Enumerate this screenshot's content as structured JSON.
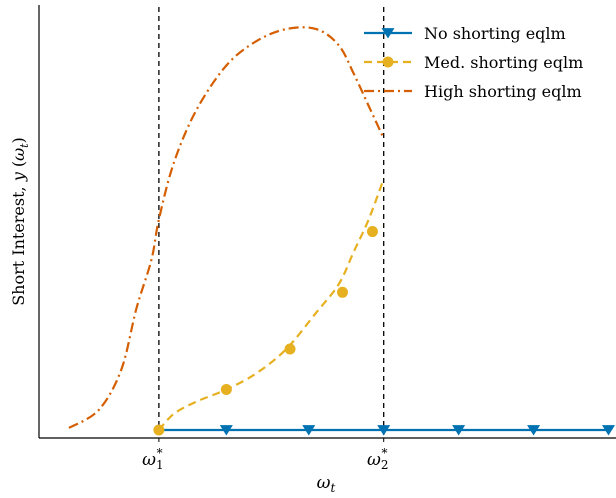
{
  "chart_data": {
    "type": "line",
    "title": "",
    "xlabel": "ω_t",
    "ylabel": "Short Interest, y(ω_t)",
    "x_ticks": [
      {
        "x": 0.31,
        "base": "ω",
        "sub": "1",
        "sup": "*"
      },
      {
        "x": 0.61,
        "base": "ω",
        "sub": "2",
        "sup": "*"
      }
    ],
    "xlim": [
      0.15,
      0.92
    ],
    "ylim": [
      0,
      1.0
    ],
    "vlines": [
      0.31,
      0.61
    ],
    "grid": false,
    "legend": "top-right",
    "series": [
      {
        "name": "No shorting eqlm",
        "color": "#0072B2",
        "style": "solid",
        "marker": "triangle-down",
        "x": [
          0.31,
          0.4,
          0.51,
          0.61,
          0.71,
          0.81,
          0.91
        ],
        "y": [
          0,
          0,
          0,
          0,
          0,
          0,
          0
        ],
        "marker_x": [
          0.4,
          0.51,
          0.61,
          0.71,
          0.81,
          0.91
        ]
      },
      {
        "name": "Med. shorting eqlm",
        "color": "#E6B020",
        "style": "dashed",
        "marker": "circle",
        "x": [
          0.31,
          0.33,
          0.36,
          0.4,
          0.44,
          0.48,
          0.52,
          0.55,
          0.57,
          0.59,
          0.61
        ],
        "y": [
          0.0,
          0.04,
          0.07,
          0.1,
          0.14,
          0.2,
          0.29,
          0.36,
          0.44,
          0.52,
          0.62
        ],
        "marker_x": [
          0.31,
          0.4,
          0.485,
          0.555,
          0.595
        ],
        "marker_y": [
          0.0,
          0.1,
          0.2,
          0.34,
          0.49
        ]
      },
      {
        "name": "High shorting eqlm",
        "color": "#D55E00",
        "style": "dashdot",
        "marker": "none",
        "x": [
          0.19,
          0.23,
          0.26,
          0.28,
          0.3,
          0.31,
          0.33,
          0.36,
          0.4,
          0.44,
          0.48,
          0.52,
          0.55,
          0.57,
          0.59,
          0.605,
          0.61
        ],
        "y": [
          0.005,
          0.05,
          0.15,
          0.3,
          0.42,
          0.52,
          0.66,
          0.79,
          0.9,
          0.96,
          0.99,
          0.99,
          0.95,
          0.88,
          0.8,
          0.74,
          0.72
        ]
      }
    ]
  }
}
